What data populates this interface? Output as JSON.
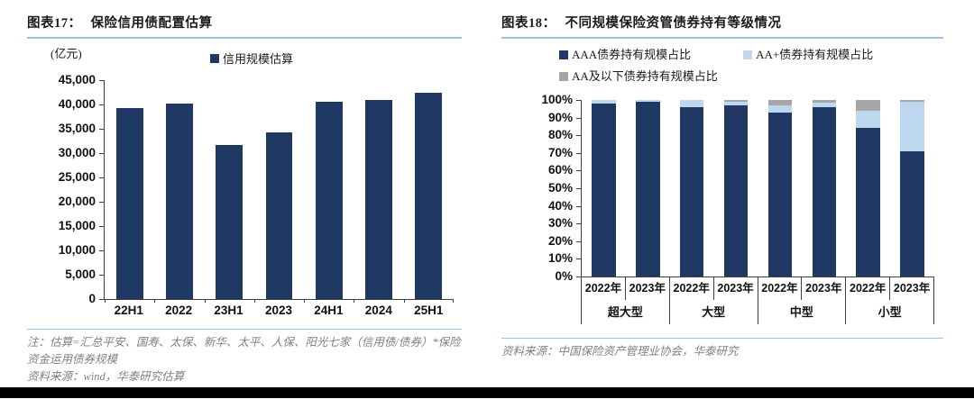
{
  "chart_data": [
    {
      "type": "bar",
      "figure_label": "图表17：",
      "title": "保险信用债配置估算",
      "ylabel_unit": "(亿元)",
      "categories": [
        "22H1",
        "2022",
        "23H1",
        "2023",
        "24H1",
        "2024",
        "25H1"
      ],
      "series": [
        {
          "name": "信用规模估算",
          "color": "#1F3864",
          "values": [
            39200,
            40200,
            31700,
            34300,
            40500,
            41000,
            42500
          ]
        }
      ],
      "ylim": [
        0,
        45000
      ],
      "ytick_step": 5000,
      "ytick_labels": [
        "45,000",
        "40,000",
        "35,000",
        "30,000",
        "25,000",
        "20,000",
        "15,000",
        "10,000",
        "5,000",
        "0"
      ],
      "grid": false,
      "legend_position": "top-center"
    },
    {
      "type": "stacked-bar-percent",
      "figure_label": "图表18：",
      "title": "不同规模保险资管债券持有等级情况",
      "categories": [
        "2022年",
        "2023年",
        "2022年",
        "2023年",
        "2022年",
        "2023年",
        "2022年",
        "2023年"
      ],
      "group_labels": [
        "超大型",
        "大型",
        "中型",
        "小型"
      ],
      "series": [
        {
          "name": "AAA债券持有规模占比",
          "color": "#1F3864",
          "values": [
            98,
            99,
            96,
            97,
            93,
            96,
            84,
            71
          ]
        },
        {
          "name": "AA+债券持有规模占比",
          "color": "#BDD7EE",
          "values": [
            2,
            1,
            4,
            2,
            4,
            2.5,
            10,
            28
          ]
        },
        {
          "name": "AA及以下债券持有规模占比",
          "color": "#A6A6A6",
          "values": [
            0,
            0,
            0,
            1,
            3,
            1.5,
            6,
            1
          ]
        }
      ],
      "ylim": [
        0,
        100
      ],
      "ytick_labels": [
        "100%",
        "90%",
        "80%",
        "70%",
        "60%",
        "50%",
        "40%",
        "30%",
        "20%",
        "10%",
        "0%"
      ],
      "grid": false,
      "legend_position": "top-left-two-rows"
    }
  ],
  "footnotes": {
    "fig17_note": "注：估算=汇总平安、国寿、太保、新华、太平、人保、阳光七家（信用债/债券）*保险资金运用债券规模",
    "fig17_source": "资料来源：wind，华泰研究估算",
    "fig18_source": "资料来源：中国保险资产管理业协会，华泰研究"
  },
  "colors": {
    "navy": "#1F3864",
    "light_blue": "#BDD7EE",
    "gray": "#A6A6A6",
    "rule_blue": "#9DC3E6",
    "axis": "#404040"
  }
}
